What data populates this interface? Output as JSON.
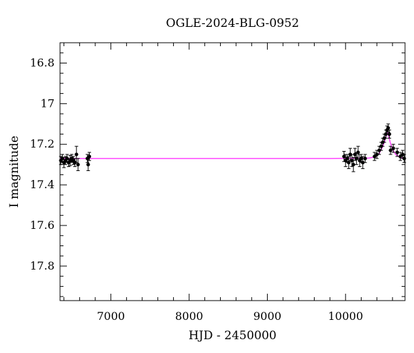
{
  "chart_data": {
    "type": "scatter",
    "title": "OGLE-2024-BLG-0952",
    "xlabel": "HJD - 2450000",
    "ylabel": "I magnitude",
    "xlim": [
      6350,
      10760
    ],
    "ylim": [
      17.97,
      16.7
    ],
    "y_inverted": true,
    "grid": false,
    "x_major_ticks": [
      7000,
      8000,
      9000,
      10000
    ],
    "y_major_ticks": [
      16.8,
      17.0,
      17.2,
      17.4,
      17.6,
      17.8
    ],
    "x_tick_labels": [
      "7000",
      "8000",
      "9000",
      "10000"
    ],
    "y_tick_labels": [
      "16.8",
      "17",
      "17.2",
      "17.4",
      "17.6",
      "17.8"
    ],
    "colors": {
      "data": "#000000",
      "model": "#ff44ff"
    },
    "model": {
      "baseline_mag": 17.27,
      "peak_time": 10535,
      "peak_mag": 17.14,
      "x": [
        6350,
        9800,
        10300,
        10380,
        10430,
        10470,
        10500,
        10520,
        10535,
        10550,
        10570,
        10600,
        10640,
        10700,
        10760
      ],
      "y": [
        17.27,
        17.27,
        17.268,
        17.262,
        17.245,
        17.215,
        17.185,
        17.16,
        17.14,
        17.16,
        17.19,
        17.225,
        17.25,
        17.265,
        17.27
      ]
    },
    "series": [
      {
        "name": "",
        "points": [
          {
            "x": 6360,
            "y": 17.28,
            "err": 0.02
          },
          {
            "x": 6380,
            "y": 17.27,
            "err": 0.02
          },
          {
            "x": 6400,
            "y": 17.29,
            "err": 0.025
          },
          {
            "x": 6420,
            "y": 17.28,
            "err": 0.02
          },
          {
            "x": 6440,
            "y": 17.27,
            "err": 0.02
          },
          {
            "x": 6460,
            "y": 17.29,
            "err": 0.02
          },
          {
            "x": 6480,
            "y": 17.28,
            "err": 0.025
          },
          {
            "x": 6500,
            "y": 17.27,
            "err": 0.02
          },
          {
            "x": 6520,
            "y": 17.28,
            "err": 0.02
          },
          {
            "x": 6540,
            "y": 17.29,
            "err": 0.02
          },
          {
            "x": 6560,
            "y": 17.25,
            "err": 0.04
          },
          {
            "x": 6580,
            "y": 17.3,
            "err": 0.03
          },
          {
            "x": 6700,
            "y": 17.27,
            "err": 0.02
          },
          {
            "x": 6710,
            "y": 17.3,
            "err": 0.03
          },
          {
            "x": 6725,
            "y": 17.26,
            "err": 0.02
          },
          {
            "x": 9980,
            "y": 17.26,
            "err": 0.025
          },
          {
            "x": 10000,
            "y": 17.28,
            "err": 0.03
          },
          {
            "x": 10020,
            "y": 17.27,
            "err": 0.02
          },
          {
            "x": 10040,
            "y": 17.29,
            "err": 0.03
          },
          {
            "x": 10060,
            "y": 17.25,
            "err": 0.03
          },
          {
            "x": 10080,
            "y": 17.28,
            "err": 0.03
          },
          {
            "x": 10100,
            "y": 17.3,
            "err": 0.035
          },
          {
            "x": 10120,
            "y": 17.25,
            "err": 0.03
          },
          {
            "x": 10140,
            "y": 17.27,
            "err": 0.03
          },
          {
            "x": 10160,
            "y": 17.24,
            "err": 0.03
          },
          {
            "x": 10180,
            "y": 17.28,
            "err": 0.03
          },
          {
            "x": 10200,
            "y": 17.27,
            "err": 0.02
          },
          {
            "x": 10220,
            "y": 17.29,
            "err": 0.03
          },
          {
            "x": 10250,
            "y": 17.27,
            "err": 0.02
          },
          {
            "x": 10370,
            "y": 17.26,
            "err": 0.02
          },
          {
            "x": 10400,
            "y": 17.25,
            "err": 0.02
          },
          {
            "x": 10430,
            "y": 17.23,
            "err": 0.02
          },
          {
            "x": 10455,
            "y": 17.21,
            "err": 0.02
          },
          {
            "x": 10475,
            "y": 17.19,
            "err": 0.02
          },
          {
            "x": 10495,
            "y": 17.17,
            "err": 0.02
          },
          {
            "x": 10515,
            "y": 17.15,
            "err": 0.02
          },
          {
            "x": 10530,
            "y": 17.13,
            "err": 0.02
          },
          {
            "x": 10545,
            "y": 17.12,
            "err": 0.02
          },
          {
            "x": 10560,
            "y": 17.15,
            "err": 0.02
          },
          {
            "x": 10575,
            "y": 17.23,
            "err": 0.02
          },
          {
            "x": 10610,
            "y": 17.22,
            "err": 0.02
          },
          {
            "x": 10660,
            "y": 17.24,
            "err": 0.02
          },
          {
            "x": 10700,
            "y": 17.26,
            "err": 0.02
          },
          {
            "x": 10730,
            "y": 17.25,
            "err": 0.02
          },
          {
            "x": 10750,
            "y": 17.27,
            "err": 0.02
          }
        ]
      }
    ]
  }
}
